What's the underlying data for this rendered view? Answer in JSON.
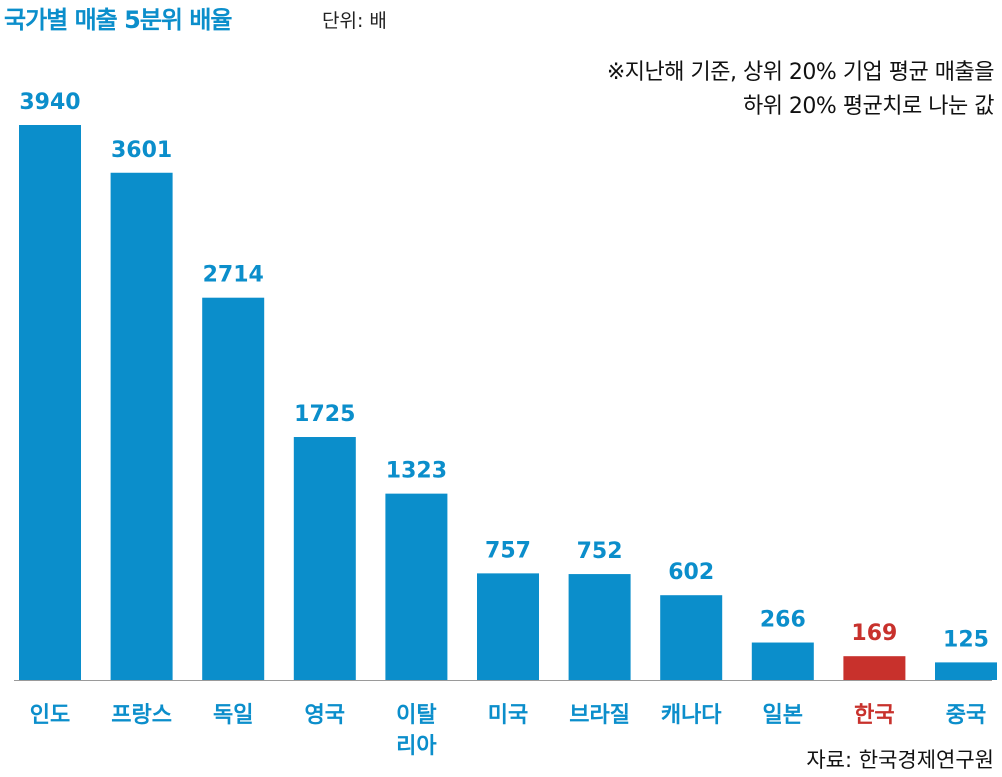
{
  "title": "국가별 매출 5분위 배율",
  "unit": "단위: 배",
  "note_lines": [
    "※지난해 기준, 상위 20% 기업 평균 매출을",
    "하위 20% 평균치로 나눈 값"
  ],
  "source": "자료: 한국경제연구원",
  "colors": {
    "bar": "#0b8ecb",
    "highlight": "#c8312c",
    "axis": "#9a9a9a"
  },
  "chart_data": {
    "type": "bar",
    "title": "국가별 매출 5분위 배율",
    "unit": "단위: 배",
    "categories": [
      "인도",
      "프랑스",
      "독일",
      "영국",
      "이탈리아",
      "미국",
      "브라질",
      "캐나다",
      "일본",
      "한국",
      "중국"
    ],
    "category_lines": [
      [
        "인도"
      ],
      [
        "프랑스"
      ],
      [
        "독일"
      ],
      [
        "영국"
      ],
      [
        "이탈",
        "리아"
      ],
      [
        "미국"
      ],
      [
        "브라질"
      ],
      [
        "캐나다"
      ],
      [
        "일본"
      ],
      [
        "한국"
      ],
      [
        "중국"
      ]
    ],
    "values": [
      3940,
      3601,
      2714,
      1725,
      1323,
      757,
      752,
      602,
      266,
      169,
      125
    ],
    "highlight": "한국",
    "grid": false,
    "legend": "none",
    "value_labels": true
  }
}
